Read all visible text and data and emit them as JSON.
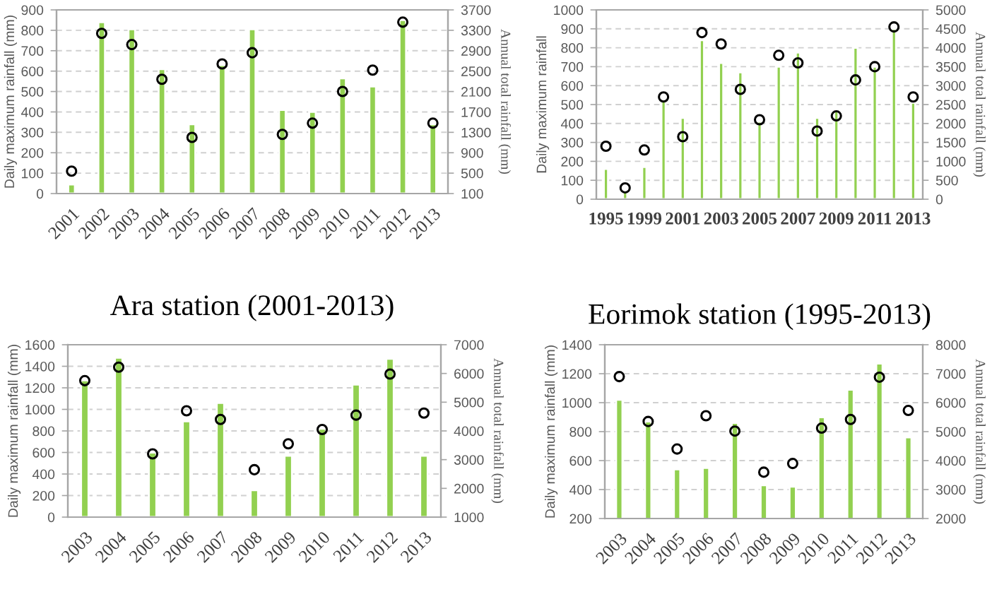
{
  "chart_data": [
    {
      "type": "bar",
      "annotations": [
        "Ara station (2001-2013)"
      ],
      "ylabel": "Daily maximum rainfall (mm)",
      "y2label": "Annual total rainfall (mm)",
      "categories": [
        "2001",
        "2002",
        "2003",
        "2004",
        "2005",
        "2006",
        "2007",
        "2008",
        "2009",
        "2010",
        "2011",
        "2012",
        "2013"
      ],
      "series": [
        {
          "color": "#92d050",
          "values": [
            45,
            840,
            805,
            610,
            340,
            630,
            805,
            410,
            400,
            565,
            525,
            850,
            340
          ]
        },
        {
          "type": "scatter",
          "axis": "y2",
          "color": "#000000",
          "marker": "circle",
          "values": [
            540,
            3240,
            3020,
            2340,
            1200,
            2640,
            2860,
            1260,
            1480,
            2100,
            2520,
            3460,
            1480
          ]
        }
      ],
      "ylim": [
        0,
        900
      ],
      "yticks": [
        0,
        100,
        200,
        300,
        400,
        500,
        600,
        700,
        800,
        900
      ],
      "y2lim": [
        100,
        3700
      ],
      "y2ticks": [
        100,
        500,
        900,
        1300,
        1700,
        2100,
        2500,
        2900,
        3300,
        3700
      ],
      "grid": "y"
    },
    {
      "type": "bar",
      "annotations": [
        "Eorimok station (1995-2013)"
      ],
      "ylabel": "Daily maximum rainfall",
      "y2label": "Annual total rainfall (mm)",
      "categories": [
        "1995",
        null,
        "1999",
        null,
        "2001",
        null,
        "2003",
        null,
        "2005",
        null,
        "2007",
        null,
        "2009",
        null,
        "2011",
        null,
        "2013"
      ],
      "series": [
        {
          "color": "#92d050",
          "values": [
            160,
            40,
            170,
            520,
            430,
            840,
            720,
            670,
            410,
            700,
            775,
            430,
            470,
            800,
            700,
            900,
            510
          ]
        },
        {
          "type": "scatter",
          "axis": "y2",
          "color": "#000000",
          "marker": "circle",
          "values": [
            1400,
            300,
            1300,
            2700,
            1650,
            4400,
            4100,
            2900,
            2100,
            3800,
            3600,
            1800,
            2200,
            3150,
            3500,
            4550,
            2700
          ]
        }
      ],
      "ylim": [
        0,
        1000
      ],
      "yticks": [
        0,
        100,
        200,
        300,
        400,
        500,
        600,
        700,
        800,
        900,
        1000
      ],
      "y2lim": [
        0,
        5000
      ],
      "y2ticks": [
        0,
        500,
        1000,
        1500,
        2000,
        2500,
        3000,
        3500,
        4000,
        4500,
        5000
      ],
      "grid": "y"
    },
    {
      "type": "bar",
      "ylabel": "Daily maximum rainfall (mm)",
      "y2label": "Annual total rainfall (mm)",
      "categories": [
        "2003",
        "2004",
        "2005",
        "2006",
        "2007",
        "2008",
        "2009",
        "2010",
        "2011",
        "2012",
        "2013"
      ],
      "series": [
        {
          "color": "#92d050",
          "values": [
            1270,
            1480,
            600,
            890,
            1060,
            250,
            570,
            820,
            1230,
            1470,
            570
          ]
        },
        {
          "type": "scatter",
          "axis": "y2",
          "color": "#000000",
          "marker": "circle",
          "values": [
            5750,
            6220,
            3200,
            4700,
            4400,
            2650,
            3550,
            4050,
            4550,
            5980,
            4620
          ]
        }
      ],
      "ylim": [
        0,
        1600
      ],
      "yticks": [
        0,
        200,
        400,
        600,
        800,
        1000,
        1200,
        1400,
        1600
      ],
      "y2lim": [
        1000,
        7000
      ],
      "y2ticks": [
        1000,
        2000,
        3000,
        4000,
        5000,
        6000,
        7000
      ],
      "grid": "y"
    },
    {
      "type": "bar",
      "ylabel": "Daily maximum rainfall (mm)",
      "y2label": "Annual total rainfall (mm)",
      "categories": [
        "2003",
        "2004",
        "2005",
        "2006",
        "2007",
        "2008",
        "2009",
        "2010",
        "2011",
        "2012",
        "2013"
      ],
      "series": [
        {
          "color": "#92d050",
          "values": [
            1020,
            870,
            540,
            550,
            860,
            430,
            420,
            900,
            1090,
            1270,
            760
          ]
        },
        {
          "type": "scatter",
          "axis": "y2",
          "color": "#000000",
          "marker": "circle",
          "values": [
            6900,
            5350,
            4400,
            5550,
            5020,
            3600,
            3900,
            5120,
            5420,
            6880,
            5730
          ]
        }
      ],
      "ylim": [
        200,
        1400
      ],
      "yticks": [
        200,
        400,
        600,
        800,
        1000,
        1200,
        1400
      ],
      "y2lim": [
        2000,
        8000
      ],
      "y2ticks": [
        2000,
        3000,
        4000,
        5000,
        6000,
        7000,
        8000
      ],
      "grid": "y"
    }
  ]
}
